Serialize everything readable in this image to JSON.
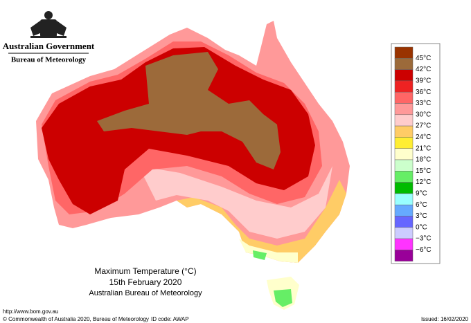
{
  "header": {
    "government": "Australian Government",
    "agency": "Bureau of Meteorology"
  },
  "legend": {
    "colors": [
      "#993300",
      "#9c6a3a",
      "#cc0000",
      "#ee2222",
      "#ff6666",
      "#ff9999",
      "#ffcccc",
      "#ffcc66",
      "#ffee33",
      "#ffffcc",
      "#ccffcc",
      "#66ee66",
      "#00bb00",
      "#99ffff",
      "#66aaff",
      "#6666ff",
      "#ccccff",
      "#ff33ff",
      "#990099"
    ],
    "labels": [
      "45°C",
      "42°C",
      "39°C",
      "36°C",
      "33°C",
      "30°C",
      "27°C",
      "24°C",
      "21°C",
      "18°C",
      "15°C",
      "12°C",
      "9°C",
      "6°C",
      "3°C",
      "0°C",
      "−3°C",
      "−6°C"
    ]
  },
  "title": {
    "line1": "Maximum Temperature (°C)",
    "line2": "15th February 2020",
    "line3": "Australian Bureau of Meteorology"
  },
  "footer": {
    "url": "http://www.bom.gov.au",
    "copyright": "© Commonwealth of Australia 2020, Bureau of Meteorology",
    "id_code": "ID code: AWAP",
    "issued": "Issued: 16/02/2020"
  }
}
